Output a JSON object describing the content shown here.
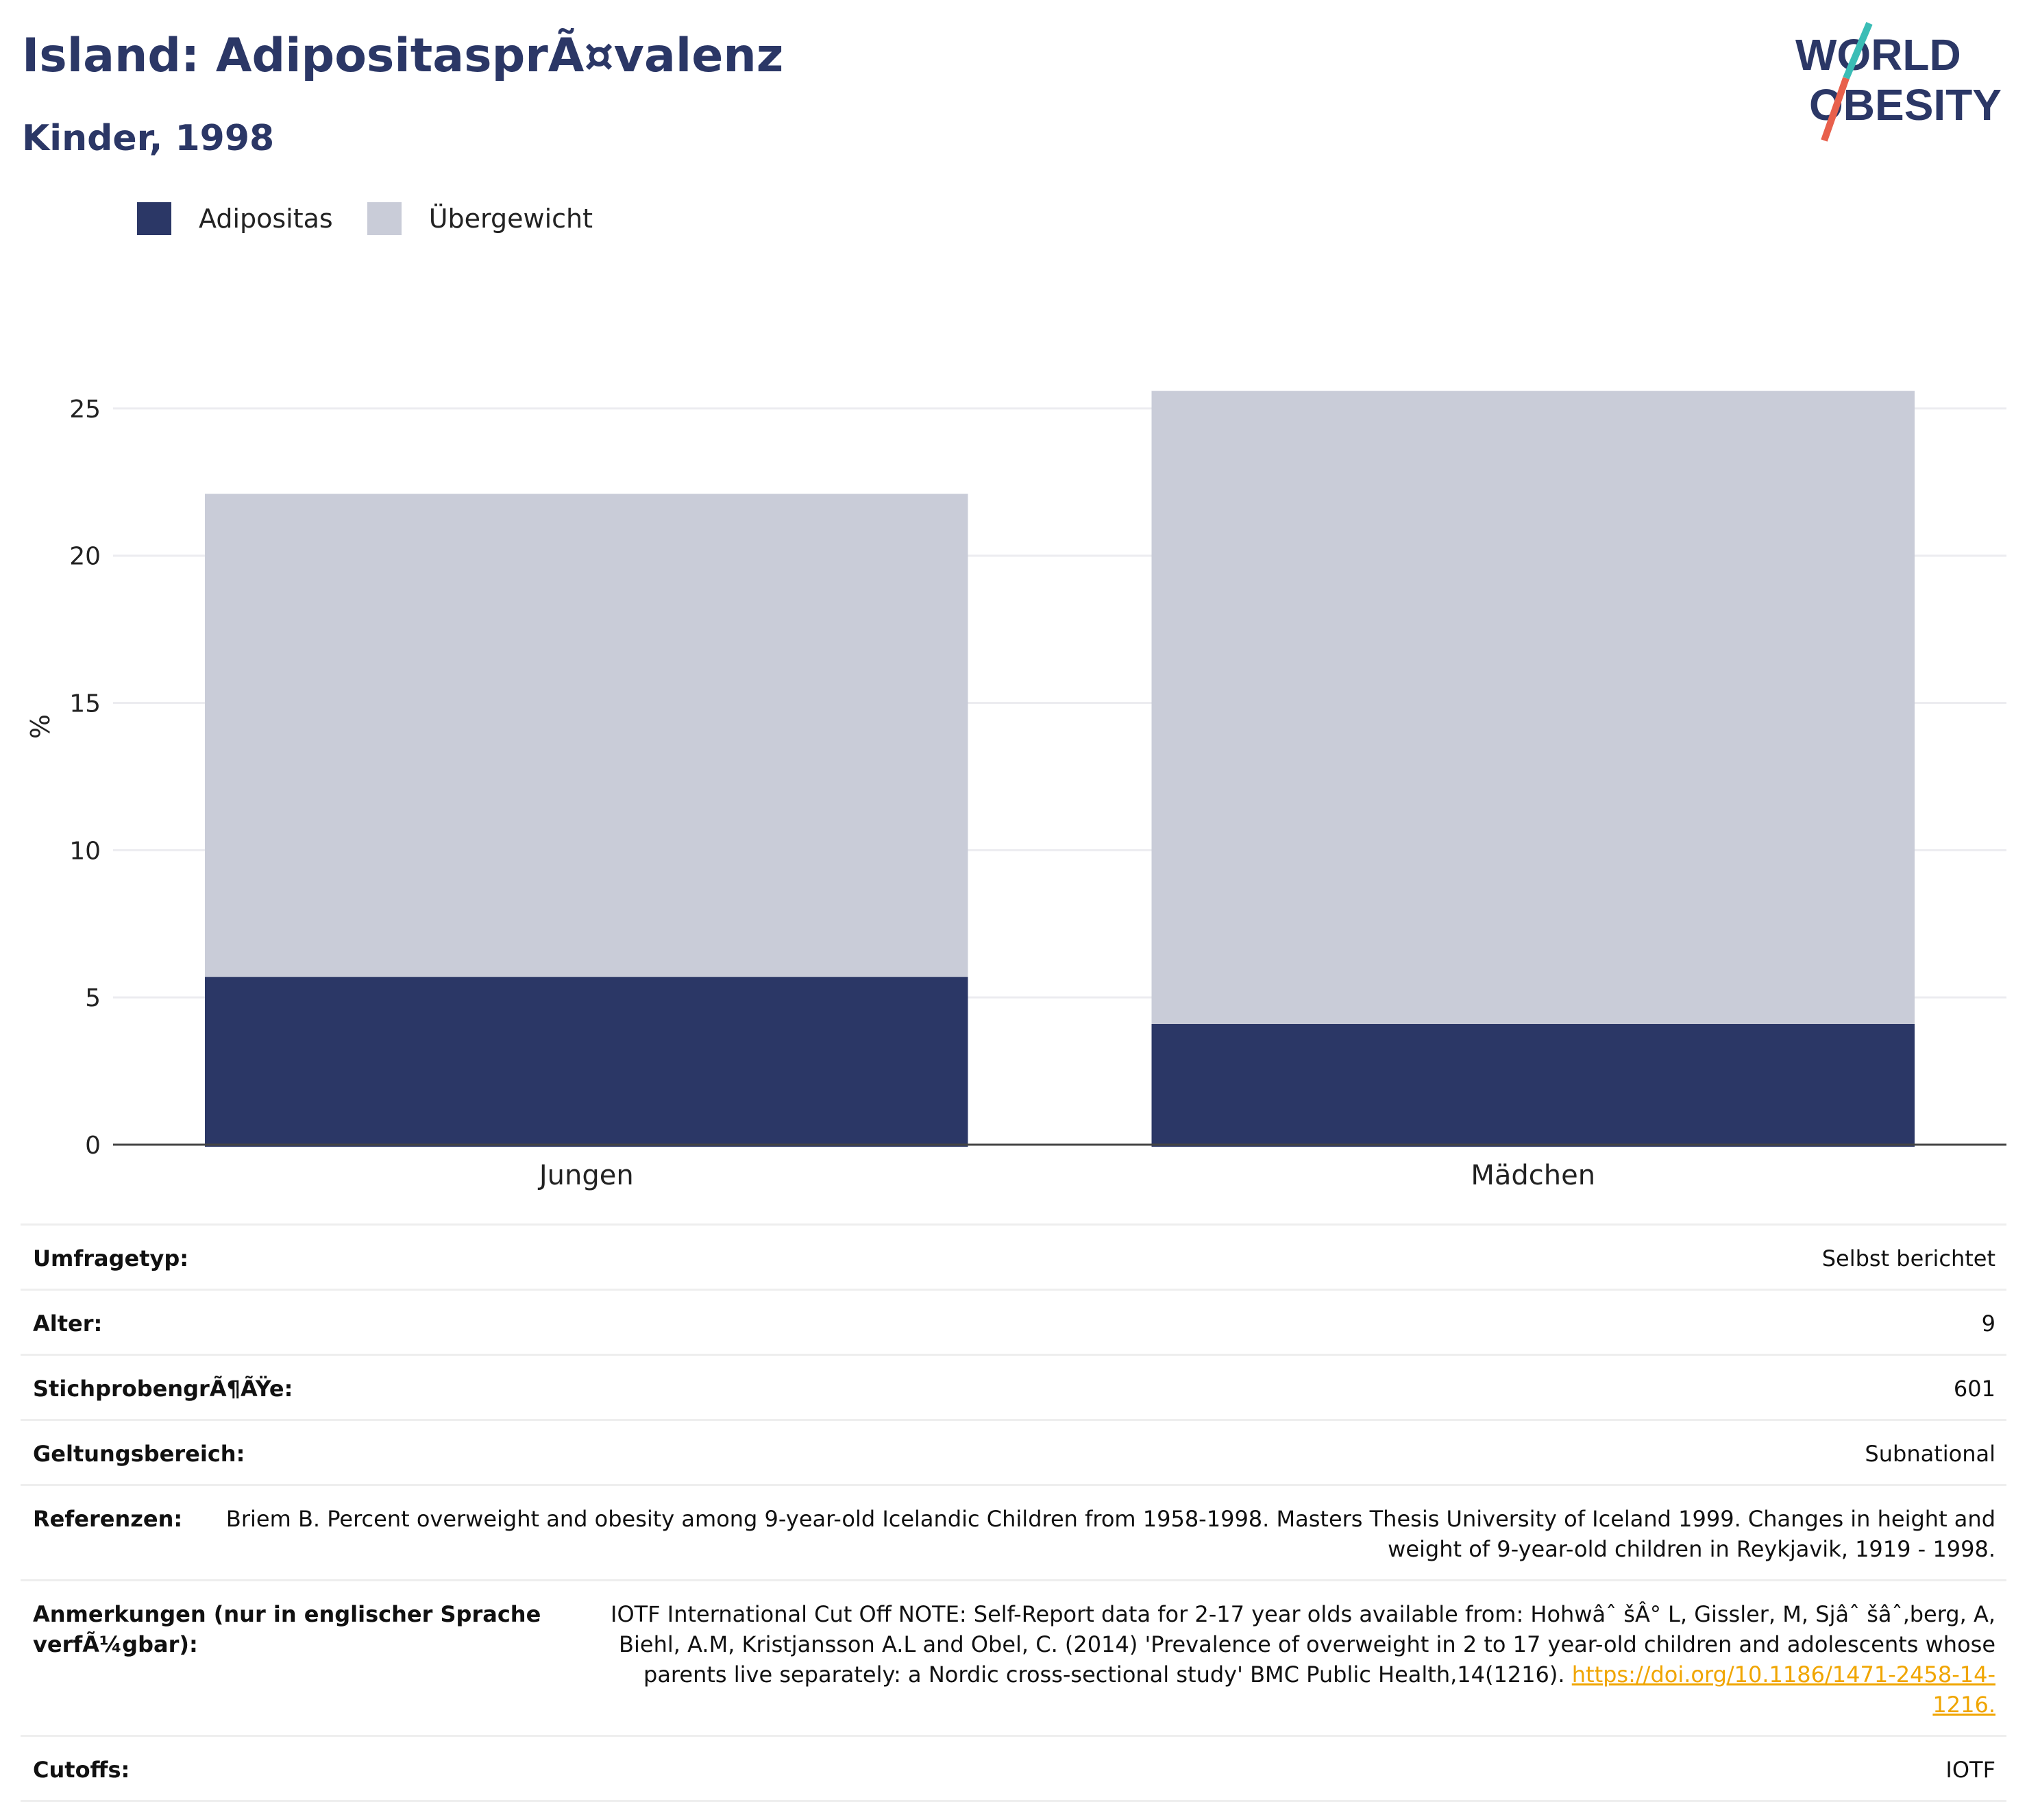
{
  "title": "Island: AdipositasprÃ¤valenz",
  "subtitle": "Kinder, 1998",
  "logo": {
    "line1": "WORLD",
    "line2": "OBESITY"
  },
  "legend": [
    {
      "label": "Adipositas",
      "color": "#2b3766"
    },
    {
      "label": "Übergewicht",
      "color": "#c9ccd8"
    }
  ],
  "chart_data": {
    "type": "bar",
    "stacked": true,
    "categories": [
      "Jungen",
      "Mädchen"
    ],
    "series": [
      {
        "name": "Adipositas",
        "values": [
          5.7,
          4.1
        ],
        "color": "#2b3766"
      },
      {
        "name": "Übergewicht",
        "values": [
          16.4,
          21.5
        ],
        "color": "#c9ccd8"
      }
    ],
    "ylabel": "%",
    "ylim": [
      0,
      27
    ],
    "yticks": [
      0,
      5,
      10,
      15,
      20,
      25
    ],
    "grid": true
  },
  "meta": {
    "survey_type": {
      "label": "Umfragetyp:",
      "value": "Selbst berichtet"
    },
    "age": {
      "label": "Alter:",
      "value": "9"
    },
    "sample_size": {
      "label": "StichprobengrÃ¶ÃŸe:",
      "value": "601"
    },
    "scope": {
      "label": "Geltungsbereich:",
      "value": "Subnational"
    },
    "references": {
      "label": "Referenzen:",
      "value": "Briem B. Percent overweight and obesity among 9-year-old Icelandic Children from 1958-1998. Masters Thesis University of Iceland 1999. Changes in height and weight of 9-year-old children in Reykjavik, 1919 - 1998."
    },
    "notes": {
      "label": "Anmerkungen (nur in englischer Sprache verfÃ¼gbar):",
      "value": "IOTF International Cut Off NOTE: Self-Report data for 2-17 year olds available from: Hohwâˆ šÂ° L, Gissler, M, Sjâˆ šâˆ‚berg, A, Biehl, A.M, Kristjansson A.L and Obel, C. (2014) 'Prevalence of overweight in 2 to 17 year-old children and adolescents whose parents live separately: a Nordic cross-sectional study' BMC Public Health,14(1216).",
      "link": "https://doi.org/10.1186/1471-2458-14-1216."
    },
    "cutoffs": {
      "label": "Cutoffs:",
      "value": "IOTF"
    }
  }
}
